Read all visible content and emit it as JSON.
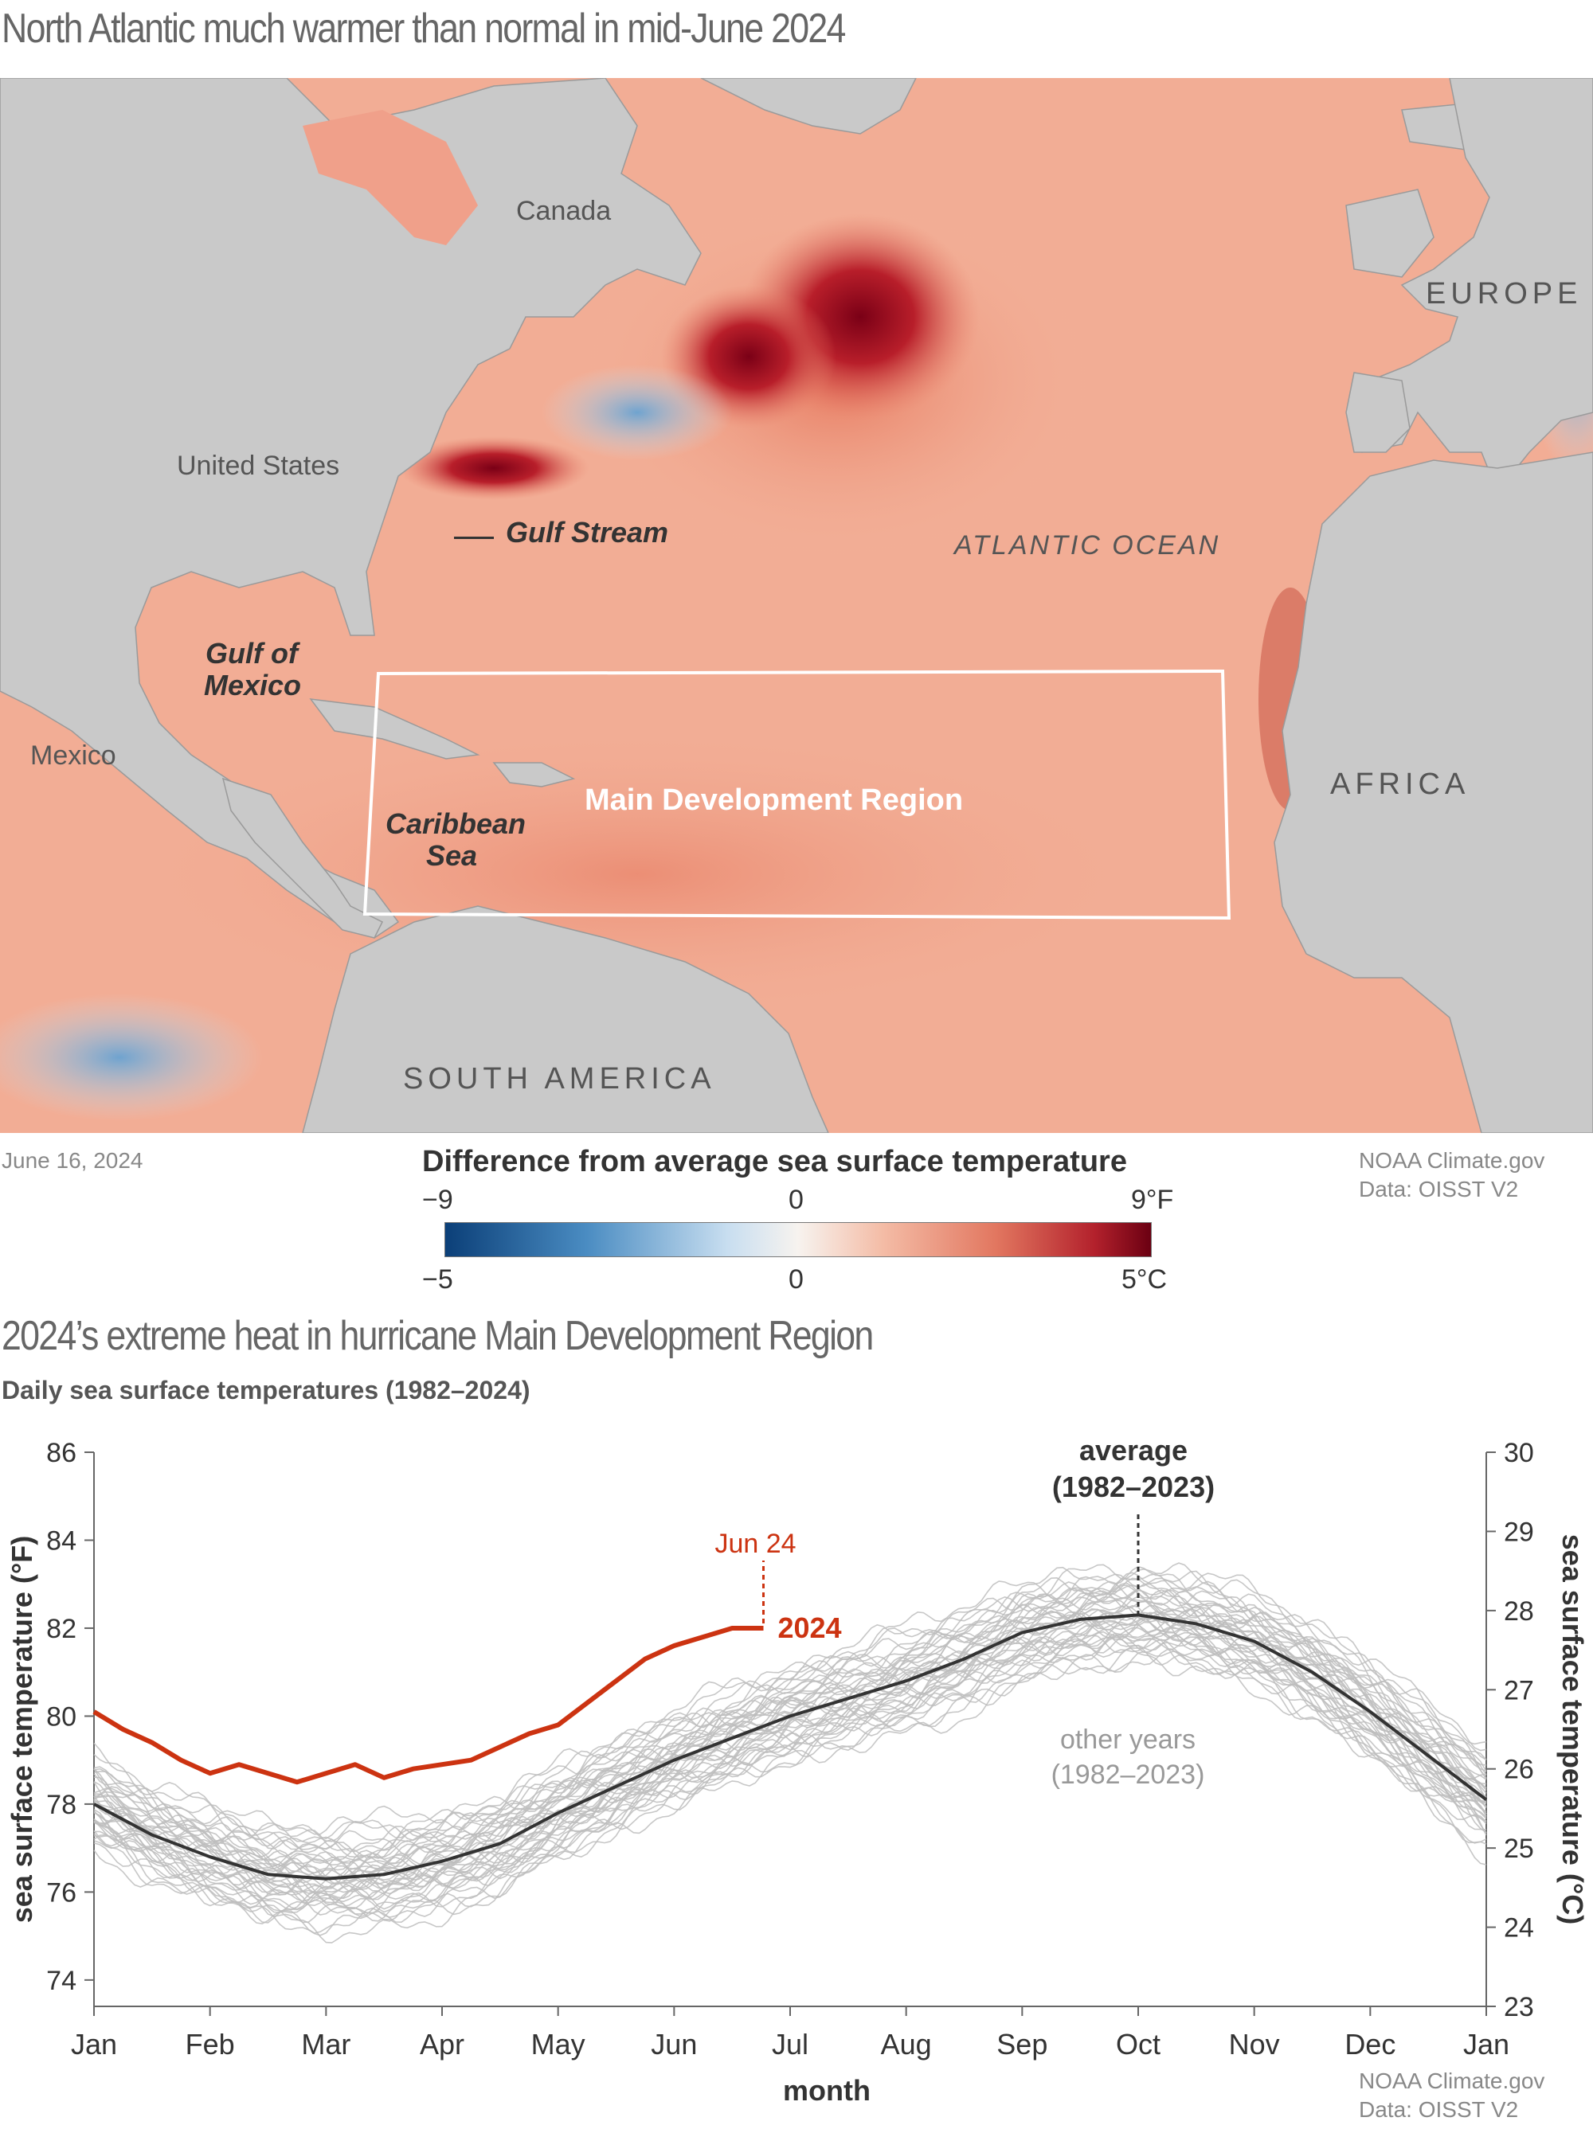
{
  "map": {
    "title": "North Atlantic much warmer than normal in mid-June 2024",
    "date": "June 16, 2024",
    "credit_line1": "NOAA Climate.gov",
    "credit_line2": "Data: OISST V2",
    "labels": {
      "canada": "Canada",
      "europe": "EUROPE",
      "united_states": "United States",
      "gulf_stream": "Gulf Stream",
      "atlantic_ocean": "ATLANTIC OCEAN",
      "gulf_of_mexico_1": "Gulf of",
      "gulf_of_mexico_2": "Mexico",
      "mexico": "Mexico",
      "caribbean_1": "Caribbean",
      "caribbean_2": "Sea",
      "mdr": "Main Development Region",
      "africa": "AFRICA",
      "south_america": "SOUTH AMERICA"
    },
    "legend": {
      "title": "Difference from average sea surface temperature",
      "f_min": "−9",
      "f_mid": "0",
      "f_max": "9°F",
      "c_min": "−5",
      "c_mid": "0",
      "c_max": "5°C"
    },
    "colors": {
      "land": "#c9c9c9",
      "cold": "#0b3f78",
      "neutral": "#f7f3ef",
      "warm": "#ee9a80",
      "hot": "#6b0012"
    }
  },
  "chart": {
    "title": "2024’s extreme heat in hurricane Main Development Region",
    "subtitle": "Daily sea surface temperatures (1982–2024)",
    "credit_line1": "NOAA Climate.gov",
    "credit_line2": "Data: OISST V2",
    "colors": {
      "y2024": "#cc3311",
      "average": "#333333",
      "other": "#bdbdbd"
    }
  },
  "chart_data": {
    "type": "line",
    "title": "2024’s extreme heat in hurricane Main Development Region",
    "subtitle": "Daily sea surface temperatures (1982–2024)",
    "xlabel": "month",
    "ylabel_left": "sea surface temperature (°F)",
    "ylabel_right": "sea surface temperature (°C)",
    "x_ticks": [
      "Jan",
      "Feb",
      "Mar",
      "Apr",
      "May",
      "Jun",
      "Jul",
      "Aug",
      "Sep",
      "Oct",
      "Nov",
      "Dec",
      "Jan"
    ],
    "ylim_f": [
      73.4,
      86
    ],
    "yticks_f": [
      74,
      76,
      78,
      80,
      82,
      84,
      86
    ],
    "ylim_c": [
      23,
      30
    ],
    "yticks_c": [
      23,
      24,
      25,
      26,
      27,
      28,
      29,
      30
    ],
    "grid": false,
    "annotations": {
      "average_1": "average",
      "average_2": "(1982–2023)",
      "other_1": "other years",
      "other_2": "(1982–2023)",
      "jun24": "Jun 24",
      "y2024": "2024"
    },
    "series": [
      {
        "name": "2024",
        "x": [
          0,
          0.25,
          0.5,
          0.75,
          1.0,
          1.25,
          1.5,
          1.75,
          2.0,
          2.25,
          2.5,
          2.75,
          3.0,
          3.25,
          3.5,
          3.75,
          4.0,
          4.25,
          4.5,
          4.75,
          5.0,
          5.25,
          5.5,
          5.77
        ],
        "values": [
          80.1,
          79.7,
          79.4,
          79.0,
          78.7,
          78.9,
          78.7,
          78.5,
          78.7,
          78.9,
          78.6,
          78.8,
          78.9,
          79.0,
          79.3,
          79.6,
          79.8,
          80.3,
          80.8,
          81.3,
          81.6,
          81.8,
          82.0,
          82.0
        ]
      },
      {
        "name": "average (1982–2023)",
        "x": [
          0,
          0.5,
          1.0,
          1.5,
          2.0,
          2.5,
          3.0,
          3.5,
          4.0,
          4.5,
          5.0,
          5.5,
          6.0,
          6.5,
          7.0,
          7.5,
          8.0,
          8.5,
          9.0,
          9.5,
          10.0,
          10.5,
          11.0,
          11.5,
          12.0
        ],
        "values": [
          78.0,
          77.3,
          76.8,
          76.4,
          76.3,
          76.4,
          76.7,
          77.1,
          77.8,
          78.4,
          79.0,
          79.5,
          80.0,
          80.4,
          80.8,
          81.3,
          81.9,
          82.2,
          82.3,
          82.1,
          81.7,
          81.0,
          80.1,
          79.1,
          78.1
        ]
      }
    ]
  }
}
